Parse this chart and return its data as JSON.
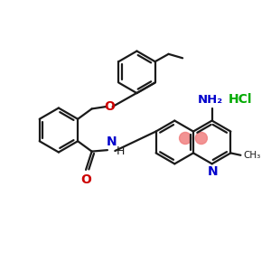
{
  "bg_color": "#ffffff",
  "bond_color": "#1a1a1a",
  "o_color": "#cc0000",
  "n_color": "#0000cc",
  "cl_color": "#00aa00",
  "ring_highlight": "#f08080",
  "lw": 1.6,
  "figsize": [
    3.0,
    3.0
  ],
  "dpi": 100,
  "xlim": [
    0,
    10
  ],
  "ylim": [
    0,
    10
  ]
}
